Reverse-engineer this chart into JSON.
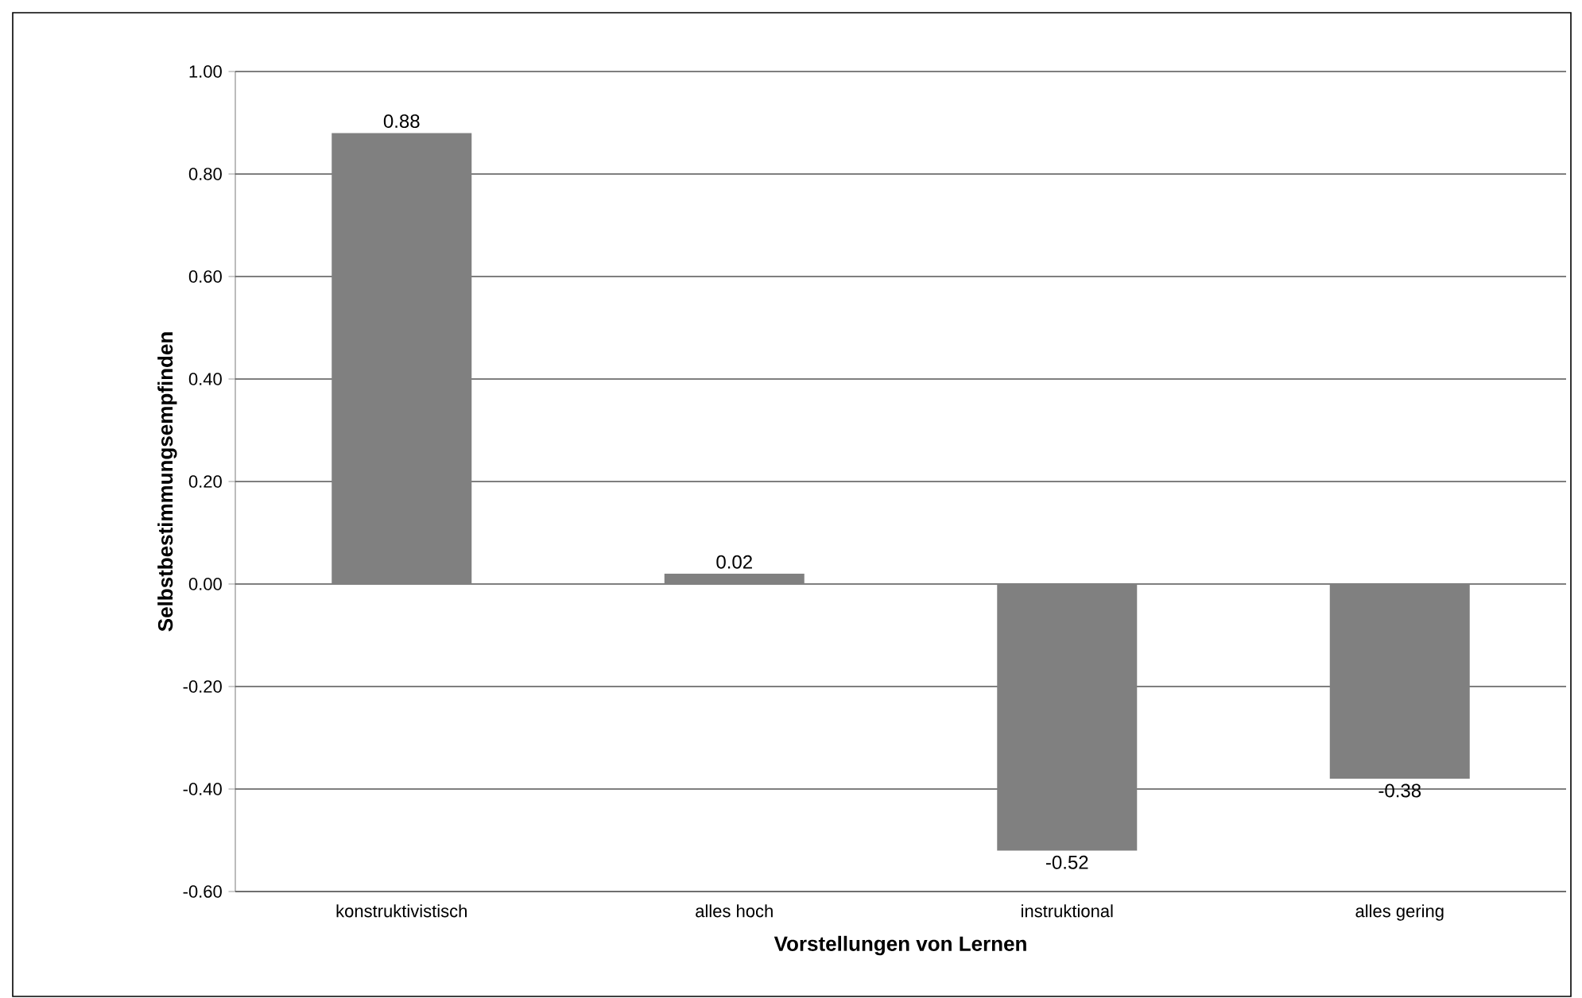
{
  "chart_data": {
    "type": "bar",
    "xlabel": "Vorstellungen von Lernen",
    "ylabel": "Selbstbestimmungsempfinden",
    "categories": [
      "konstruktivistisch",
      "alles hoch",
      "instruktional",
      "alles gering"
    ],
    "values": [
      0.88,
      0.02,
      -0.52,
      -0.38
    ],
    "color": "#808080",
    "ylim": [
      -0.6,
      1.0
    ],
    "yticks": [
      {
        "value": -0.6,
        "label": "-0.60"
      },
      {
        "value": -0.4,
        "label": "-0.40"
      },
      {
        "value": -0.2,
        "label": "-0.20"
      },
      {
        "value": 0,
        "label": "0.00"
      },
      {
        "value": 0.2,
        "label": "0.20"
      },
      {
        "value": 0.4,
        "label": "0.40"
      },
      {
        "value": 0.6,
        "label": "0.60"
      },
      {
        "value": 0.8,
        "label": "0.80"
      },
      {
        "value": 1.0,
        "label": "1.00"
      }
    ],
    "grid": "y",
    "data_labels": true
  }
}
